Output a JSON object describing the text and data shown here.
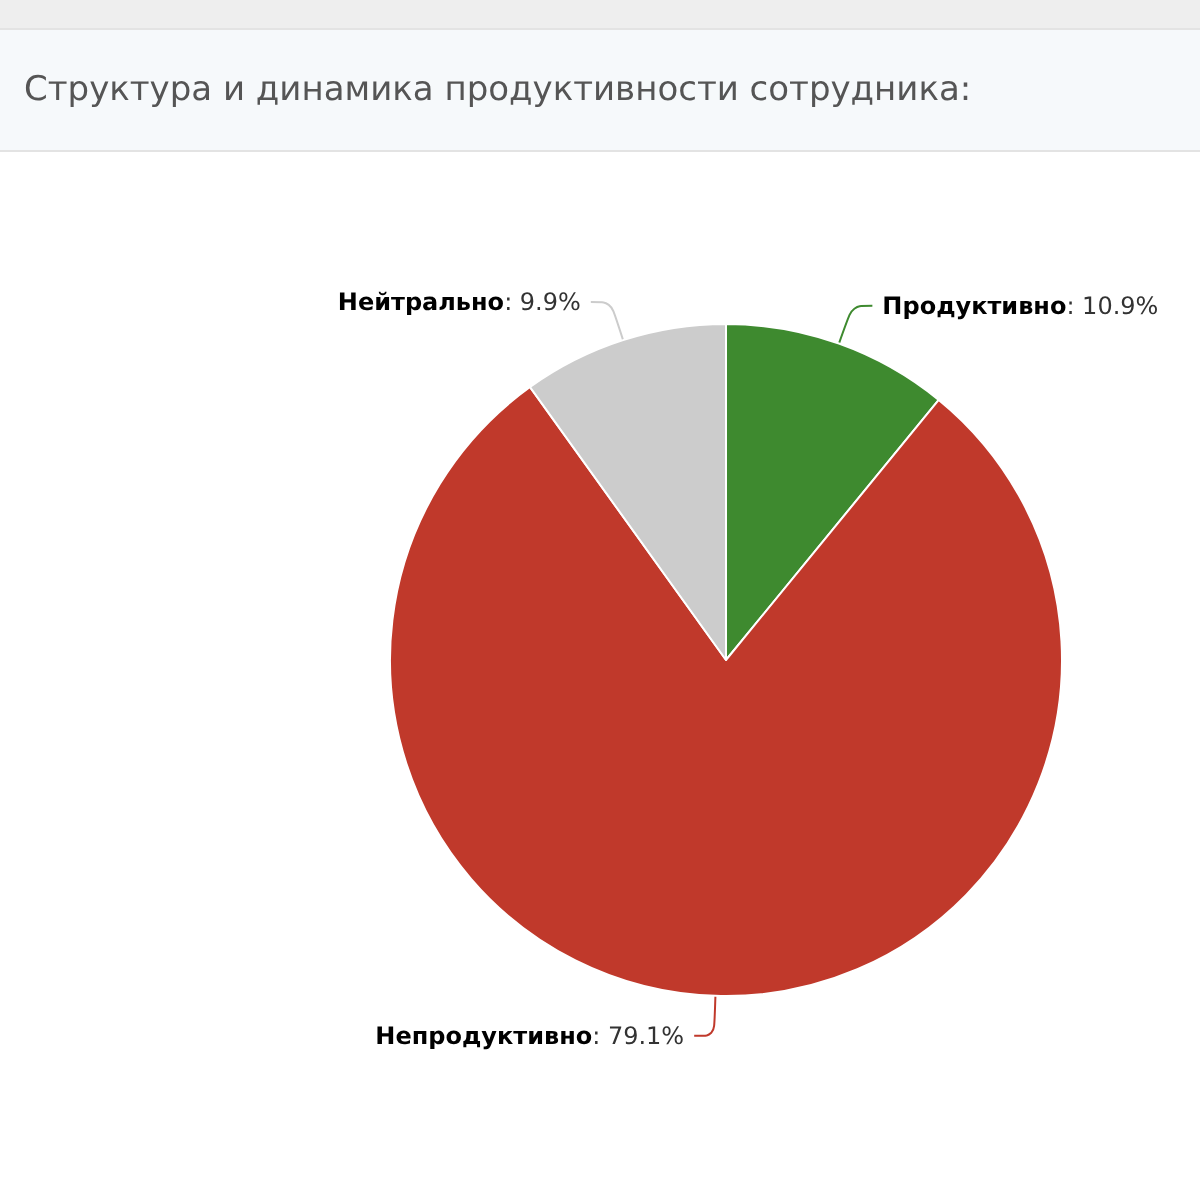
{
  "chart_data": {
    "type": "pie",
    "title": "Структура и динамика продуктивности сотрудника:",
    "categories": [
      "Продуктивно",
      "Непродуктивно",
      "Нейтрально"
    ],
    "values": [
      10.9,
      79.1,
      9.9
    ],
    "colors": [
      "#3e8a2f",
      "#c0392b",
      "#cccccc"
    ],
    "value_labels": [
      ": 10.9%",
      ": 79.1%",
      ": 9.9%"
    ],
    "legend": false
  }
}
